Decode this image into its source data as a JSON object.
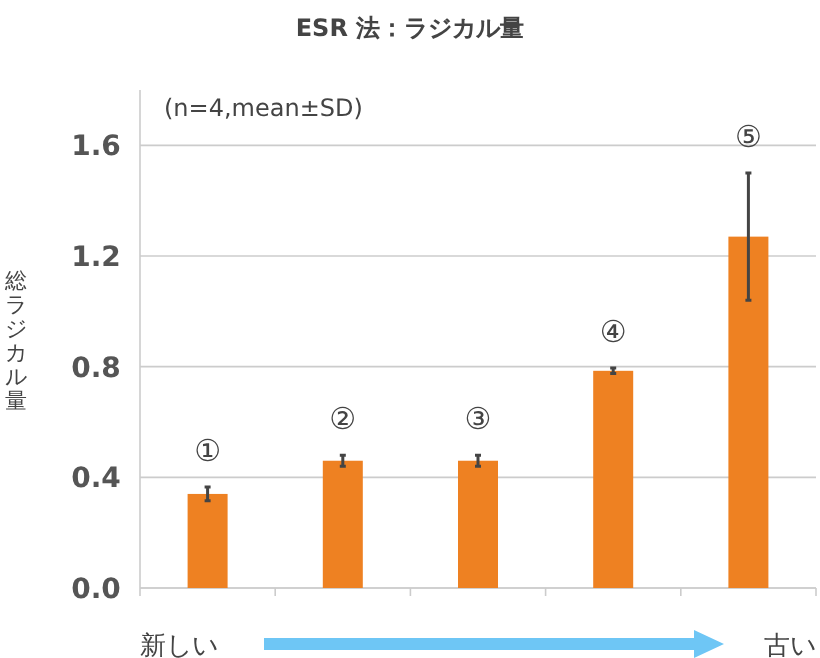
{
  "chart_data": {
    "type": "bar",
    "title": "ESR 法：ラジカル量",
    "ylabel": "総ラジカル量",
    "categories": [
      "①",
      "②",
      "③",
      "④",
      "⑤"
    ],
    "values": [
      0.34,
      0.46,
      0.46,
      0.785,
      1.27
    ],
    "errors": [
      0.025,
      0.02,
      0.02,
      0.01,
      0.23
    ],
    "color": "#ee8122",
    "ylim": [
      0,
      1.8
    ],
    "yticks": [
      {
        "value": 0,
        "label": "0.0"
      },
      {
        "value": 0.4,
        "label": "0.4"
      },
      {
        "value": 0.8,
        "label": "0.8"
      },
      {
        "value": 1.2,
        "label": "1.2"
      },
      {
        "value": 1.6,
        "label": "1.6"
      }
    ],
    "grid": "y",
    "annotations": [
      "(n=4,mean±SD)",
      "新しい",
      "古い"
    ]
  }
}
